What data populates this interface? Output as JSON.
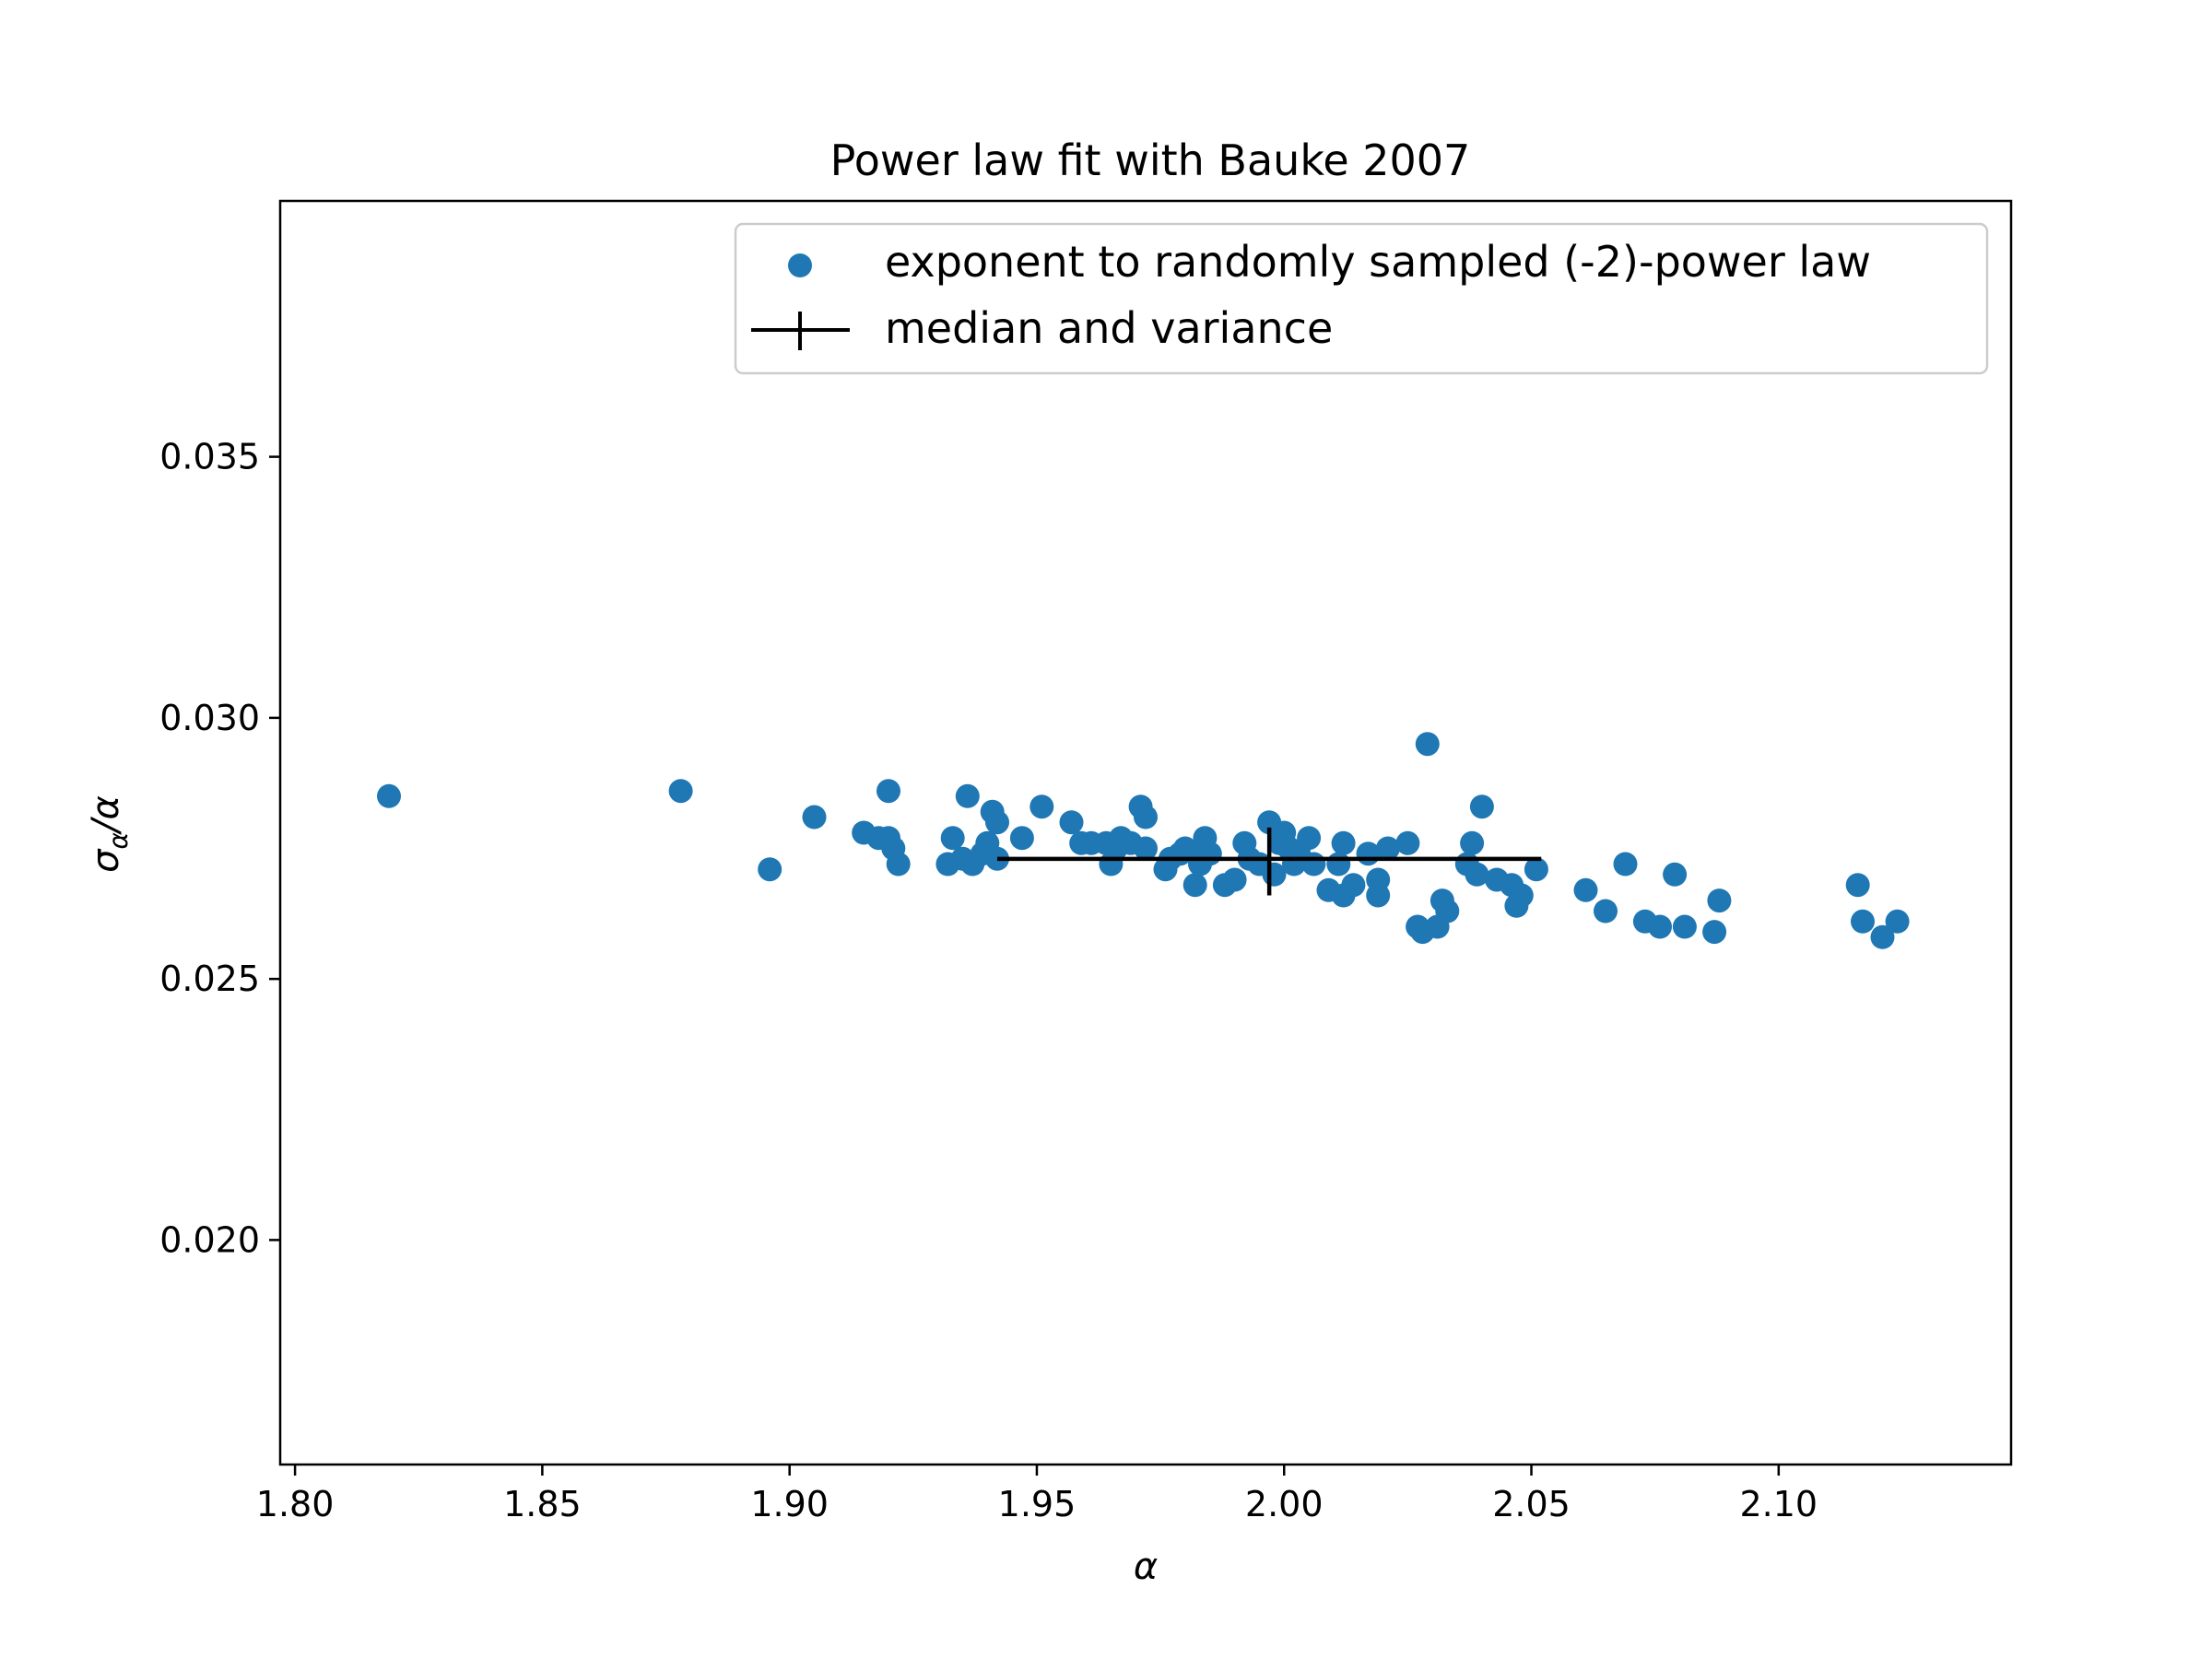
{
  "chart_data": {
    "type": "scatter",
    "title": "Power law fit with Bauke 2007",
    "xlabel": "α",
    "ylabel_main": "σ",
    "ylabel_sub": "α",
    "ylabel_rest": "/α",
    "xlim": [
      1.797,
      2.147
    ],
    "ylim": [
      0.0157,
      0.0399
    ],
    "xticks": [
      1.8,
      1.85,
      1.9,
      1.95,
      2.0,
      2.05,
      2.1
    ],
    "xtick_labels": [
      "1.80",
      "1.85",
      "1.90",
      "1.95",
      "2.00",
      "2.05",
      "2.10"
    ],
    "yticks": [
      0.02,
      0.025,
      0.03,
      0.035
    ],
    "ytick_labels": [
      "0.020",
      "0.025",
      "0.030",
      "0.035"
    ],
    "legend_position": "top-right",
    "series": [
      {
        "name": "exponent to randomly sampled (-2)-power law",
        "kind": "scatter",
        "color": "#1f77b4",
        "points": [
          [
            1.819,
            0.0285
          ],
          [
            1.878,
            0.0286
          ],
          [
            1.896,
            0.0271
          ],
          [
            1.905,
            0.0281
          ],
          [
            1.915,
            0.0278
          ],
          [
            1.918,
            0.0277
          ],
          [
            1.92,
            0.0277
          ],
          [
            1.92,
            0.0286
          ],
          [
            1.921,
            0.0275
          ],
          [
            1.922,
            0.0272
          ],
          [
            1.932,
            0.0272
          ],
          [
            1.933,
            0.0277
          ],
          [
            1.935,
            0.0273
          ],
          [
            1.936,
            0.0285
          ],
          [
            1.937,
            0.0272
          ],
          [
            1.939,
            0.0274
          ],
          [
            1.94,
            0.0276
          ],
          [
            1.941,
            0.0282
          ],
          [
            1.942,
            0.028
          ],
          [
            1.942,
            0.0273
          ],
          [
            1.947,
            0.0277
          ],
          [
            1.951,
            0.0283
          ],
          [
            1.957,
            0.028
          ],
          [
            1.959,
            0.0276
          ],
          [
            1.961,
            0.0276
          ],
          [
            1.964,
            0.0276
          ],
          [
            1.965,
            0.0272
          ],
          [
            1.966,
            0.0275
          ],
          [
            1.967,
            0.0277
          ],
          [
            1.969,
            0.0276
          ],
          [
            1.971,
            0.0283
          ],
          [
            1.972,
            0.0281
          ],
          [
            1.972,
            0.0275
          ],
          [
            1.976,
            0.0271
          ],
          [
            1.977,
            0.0273
          ],
          [
            1.979,
            0.0274
          ],
          [
            1.98,
            0.0275
          ],
          [
            1.982,
            0.0268
          ],
          [
            1.983,
            0.0272
          ],
          [
            1.984,
            0.0274
          ],
          [
            1.984,
            0.0277
          ],
          [
            1.985,
            0.0274
          ],
          [
            1.988,
            0.0268
          ],
          [
            1.99,
            0.0269
          ],
          [
            1.992,
            0.0276
          ],
          [
            1.993,
            0.0273
          ],
          [
            1.995,
            0.0272
          ],
          [
            1.997,
            0.028
          ],
          [
            1.998,
            0.027
          ],
          [
            1.999,
            0.0276
          ],
          [
            2.0,
            0.0278
          ],
          [
            2.001,
            0.0275
          ],
          [
            2.002,
            0.0272
          ],
          [
            2.003,
            0.0274
          ],
          [
            2.005,
            0.0277
          ],
          [
            2.006,
            0.0272
          ],
          [
            2.009,
            0.0267
          ],
          [
            2.011,
            0.0272
          ],
          [
            2.012,
            0.0276
          ],
          [
            2.012,
            0.0266
          ],
          [
            2.014,
            0.0268
          ],
          [
            2.017,
            0.0274
          ],
          [
            2.019,
            0.0266
          ],
          [
            2.019,
            0.0269
          ],
          [
            2.021,
            0.0275
          ],
          [
            2.025,
            0.0276
          ],
          [
            2.027,
            0.026
          ],
          [
            2.028,
            0.0259
          ],
          [
            2.029,
            0.0295
          ],
          [
            2.031,
            0.026
          ],
          [
            2.032,
            0.0265
          ],
          [
            2.033,
            0.0263
          ],
          [
            2.037,
            0.0272
          ],
          [
            2.038,
            0.0276
          ],
          [
            2.039,
            0.027
          ],
          [
            2.04,
            0.0283
          ],
          [
            2.043,
            0.0269
          ],
          [
            2.046,
            0.0268
          ],
          [
            2.047,
            0.0264
          ],
          [
            2.048,
            0.0266
          ],
          [
            2.051,
            0.0271
          ],
          [
            2.061,
            0.0267
          ],
          [
            2.065,
            0.0263
          ],
          [
            2.069,
            0.0272
          ],
          [
            2.073,
            0.0261
          ],
          [
            2.076,
            0.026
          ],
          [
            2.079,
            0.027
          ],
          [
            2.081,
            0.026
          ],
          [
            2.087,
            0.0259
          ],
          [
            2.088,
            0.0265
          ],
          [
            2.116,
            0.0268
          ],
          [
            2.117,
            0.0261
          ],
          [
            2.121,
            0.0258
          ],
          [
            2.124,
            0.0261
          ]
        ]
      },
      {
        "name": "median and variance",
        "kind": "errorbar",
        "color": "#000000",
        "x": 1.997,
        "y": 0.0273,
        "xerr": [
          1.942,
          2.052
        ],
        "yerr": [
          0.0266,
          0.0279
        ]
      }
    ]
  }
}
